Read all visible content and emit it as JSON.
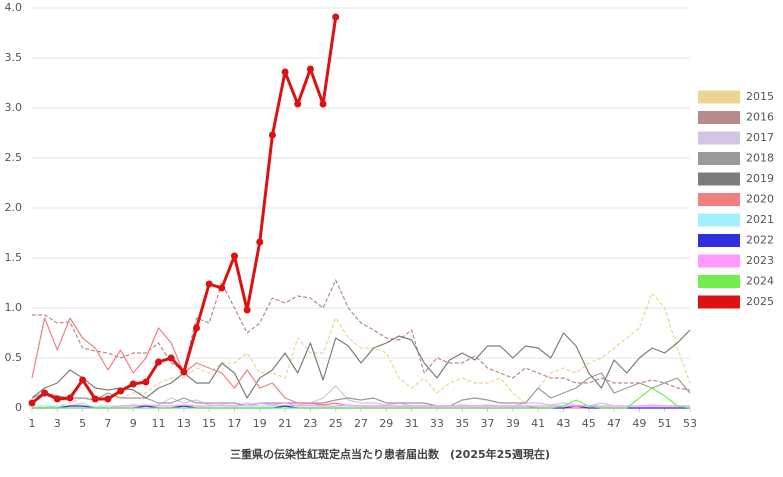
{
  "chart_data": {
    "type": "line",
    "title": "三重県の伝染性紅斑定点当たり患者届出数　(2025年25週現在)",
    "x": [
      1,
      2,
      3,
      4,
      5,
      6,
      7,
      8,
      9,
      10,
      11,
      12,
      13,
      14,
      15,
      16,
      17,
      18,
      19,
      20,
      21,
      22,
      23,
      24,
      25,
      26,
      27,
      28,
      29,
      30,
      31,
      32,
      33,
      34,
      35,
      36,
      37,
      38,
      39,
      40,
      41,
      42,
      43,
      44,
      45,
      46,
      47,
      48,
      49,
      50,
      51,
      52,
      53
    ],
    "xlim": [
      1,
      53
    ],
    "xticks": [
      1,
      3,
      5,
      7,
      9,
      11,
      13,
      15,
      17,
      19,
      21,
      23,
      25,
      27,
      29,
      31,
      33,
      35,
      37,
      39,
      41,
      43,
      45,
      47,
      49,
      51,
      53
    ],
    "ylim": [
      0,
      4
    ],
    "yticks": [
      0,
      0.5,
      {
        "value": 1,
        "label": "1.0"
      },
      1.5,
      {
        "value": 2,
        "label": "2.0"
      },
      2.5,
      {
        "value": 3,
        "label": "3.0"
      },
      3.5,
      {
        "value": 4,
        "label": "4.0"
      }
    ],
    "grid": true,
    "legend": "right",
    "series": [
      {
        "name": "2015",
        "color": "#ecd494",
        "dashed": true,
        "values": [
          0.0,
          0.02,
          0.02,
          0.05,
          0.1,
          0.1,
          0.1,
          0.1,
          0.15,
          0.15,
          0.25,
          0.3,
          0.3,
          0.4,
          0.35,
          0.45,
          0.45,
          0.55,
          0.35,
          0.35,
          0.3,
          0.7,
          0.55,
          0.55,
          0.9,
          0.7,
          0.6,
          0.6,
          0.55,
          0.3,
          0.2,
          0.3,
          0.15,
          0.25,
          0.3,
          0.25,
          0.25,
          0.3,
          0.15,
          0.05,
          0.2,
          0.35,
          0.4,
          0.35,
          0.45,
          0.5,
          0.6,
          0.7,
          0.8,
          1.15,
          1.0,
          0.6,
          0.25
        ]
      },
      {
        "name": "2016",
        "color": "#b88a8a",
        "dashed": true,
        "values": [
          0.93,
          0.93,
          0.85,
          0.86,
          0.6,
          0.57,
          0.55,
          0.5,
          0.55,
          0.55,
          0.65,
          0.45,
          0.38,
          0.9,
          0.85,
          1.25,
          1.0,
          0.75,
          0.85,
          1.1,
          1.05,
          1.12,
          1.1,
          1.0,
          1.28,
          1.0,
          0.85,
          0.78,
          0.7,
          0.68,
          0.78,
          0.35,
          0.5,
          0.45,
          0.45,
          0.52,
          0.4,
          0.35,
          0.3,
          0.4,
          0.35,
          0.3,
          0.3,
          0.25,
          0.25,
          0.3,
          0.25,
          0.25,
          0.25,
          0.28,
          0.25,
          0.2,
          0.18
        ]
      },
      {
        "name": "2017",
        "color": "#d2c4e4",
        "values": [
          0,
          0,
          0.02,
          0.02,
          0.05,
          0,
          0.02,
          0.02,
          0.03,
          0.02,
          0.03,
          0.1,
          0.05,
          0.08,
          0.03,
          0.02,
          0.02,
          0.05,
          0.02,
          0.02,
          0.02,
          0.03,
          0.05,
          0.1,
          0.22,
          0.08,
          0.05,
          0.05,
          0.03,
          0.05,
          0.02,
          0.02,
          0.02,
          0.02,
          0.03,
          0.02,
          0.03,
          0.02,
          0.02,
          0.05,
          0.05,
          0.03,
          0.05,
          0.03,
          0.02,
          0.05,
          0.02,
          0.02,
          0.02,
          0.03,
          0.02,
          0.02,
          0.02
        ]
      },
      {
        "name": "2018",
        "color": "#9a9a9a",
        "values": [
          0.1,
          0.15,
          0.12,
          0.1,
          0.1,
          0.08,
          0.15,
          0.1,
          0.1,
          0.1,
          0.05,
          0.05,
          0.1,
          0.05,
          0.05,
          0.05,
          0.05,
          0.02,
          0.05,
          0.05,
          0.05,
          0.05,
          0.05,
          0.05,
          0.08,
          0.1,
          0.08,
          0.1,
          0.05,
          0.05,
          0.05,
          0.05,
          0.02,
          0.02,
          0.08,
          0.1,
          0.08,
          0.05,
          0.05,
          0.05,
          0.2,
          0.1,
          0.15,
          0.2,
          0.3,
          0.35,
          0.15,
          0.2,
          0.25,
          0.2,
          0.25,
          0.3,
          0.15
        ]
      },
      {
        "name": "2019",
        "color": "#7c7c7c",
        "values": [
          0.1,
          0.2,
          0.25,
          0.38,
          0.3,
          0.2,
          0.18,
          0.2,
          0.18,
          0.1,
          0.2,
          0.25,
          0.35,
          0.25,
          0.25,
          0.45,
          0.35,
          0.1,
          0.3,
          0.38,
          0.55,
          0.35,
          0.65,
          0.28,
          0.7,
          0.62,
          0.45,
          0.6,
          0.65,
          0.72,
          0.68,
          0.45,
          0.3,
          0.48,
          0.55,
          0.48,
          0.62,
          0.62,
          0.5,
          0.62,
          0.6,
          0.5,
          0.75,
          0.62,
          0.35,
          0.2,
          0.48,
          0.35,
          0.5,
          0.6,
          0.55,
          0.65,
          0.78
        ]
      },
      {
        "name": "2020",
        "color": "#f08080",
        "values": [
          0.3,
          0.9,
          0.58,
          0.9,
          0.7,
          0.6,
          0.38,
          0.58,
          0.35,
          0.5,
          0.8,
          0.65,
          0.35,
          0.45,
          0.4,
          0.35,
          0.2,
          0.38,
          0.2,
          0.25,
          0.1,
          0.05,
          0.05,
          0.03,
          0.05,
          0.02,
          0.02,
          0.02,
          0.02,
          0.02,
          0.02,
          0.02,
          0.02,
          0.02,
          0.02,
          0.02,
          0.02,
          0.02,
          0.02,
          0.02,
          0,
          0,
          0,
          0,
          0,
          0,
          0,
          0,
          0,
          0,
          0,
          0,
          0
        ]
      },
      {
        "name": "2021",
        "color": "#a0f0ff",
        "values": [
          0.02,
          0.02,
          0.02,
          0.02,
          0.02,
          0.02,
          0.02,
          0.02,
          0.02,
          0.02,
          0.02,
          0.02,
          0.02,
          0.02,
          0.02,
          0.02,
          0.02,
          0.02,
          0.02,
          0.02,
          0.02,
          0.02,
          0.02,
          0.02,
          0.02,
          0.02,
          0.02,
          0.02,
          0.02,
          0.02,
          0.02,
          0.02,
          0.02,
          0.02,
          0.02,
          0.02,
          0.02,
          0.02,
          0.02,
          0.02,
          0.02,
          0.02,
          0.02,
          0.02,
          0.02,
          0.02,
          0.02,
          0.02,
          0.02,
          0.02,
          0.02,
          0.02,
          0.02
        ]
      },
      {
        "name": "2022",
        "color": "#3030e0",
        "values": [
          0,
          0,
          0,
          0.02,
          0.02,
          0,
          0,
          0,
          0,
          0.02,
          0,
          0,
          0.02,
          0,
          0,
          0,
          0,
          0,
          0,
          0,
          0.02,
          0,
          0,
          0,
          0,
          0,
          0,
          0,
          0,
          0,
          0,
          0,
          0,
          0,
          0,
          0,
          0,
          0,
          0,
          0,
          0,
          0,
          0,
          0.02,
          0,
          0,
          0,
          0,
          0,
          0,
          0,
          0,
          0
        ]
      },
      {
        "name": "2023",
        "color": "#ff99ff",
        "values": [
          0,
          0,
          0,
          0,
          0,
          0,
          0,
          0.02,
          0.02,
          0.03,
          0.02,
          0.02,
          0.03,
          0.02,
          0.02,
          0.03,
          0.02,
          0.03,
          0.05,
          0.03,
          0.05,
          0.02,
          0.03,
          0.02,
          0.02,
          0.03,
          0.02,
          0.02,
          0.02,
          0.02,
          0.02,
          0.02,
          0.02,
          0.02,
          0.02,
          0.02,
          0.02,
          0.02,
          0.02,
          0.02,
          0.02,
          0.02,
          0.02,
          0.02,
          0.02,
          0.02,
          0.02,
          0.02,
          0.02,
          0.02,
          0.02,
          0.02,
          0.02
        ]
      },
      {
        "name": "2024",
        "color": "#70ee50",
        "values": [
          0,
          0,
          0,
          0,
          0,
          0,
          0,
          0,
          0,
          0,
          0,
          0,
          0,
          0,
          0,
          0,
          0,
          0,
          0,
          0,
          0,
          0,
          0,
          0,
          0,
          0,
          0,
          0,
          0,
          0,
          0,
          0,
          0,
          0,
          0,
          0,
          0,
          0,
          0,
          0,
          0,
          0,
          0.02,
          0.08,
          0.02,
          0,
          0,
          0,
          0.1,
          0.2,
          0.12,
          0.02,
          0
        ]
      },
      {
        "name": "2025",
        "color": "#dd1111",
        "markers": true,
        "values": [
          0.05,
          0.15,
          0.09,
          0.1,
          0.28,
          0.09,
          0.09,
          0.17,
          0.24,
          0.26,
          0.46,
          0.5,
          0.36,
          0.8,
          1.24,
          1.2,
          1.52,
          0.98,
          1.66,
          2.73,
          3.36,
          3.04,
          3.39,
          3.04,
          3.91,
          null,
          null,
          null,
          null,
          null,
          null,
          null,
          null,
          null,
          null,
          null,
          null,
          null,
          null,
          null,
          null,
          null,
          null,
          null,
          null,
          null,
          null,
          null,
          null,
          null,
          null,
          null,
          null
        ]
      }
    ]
  }
}
